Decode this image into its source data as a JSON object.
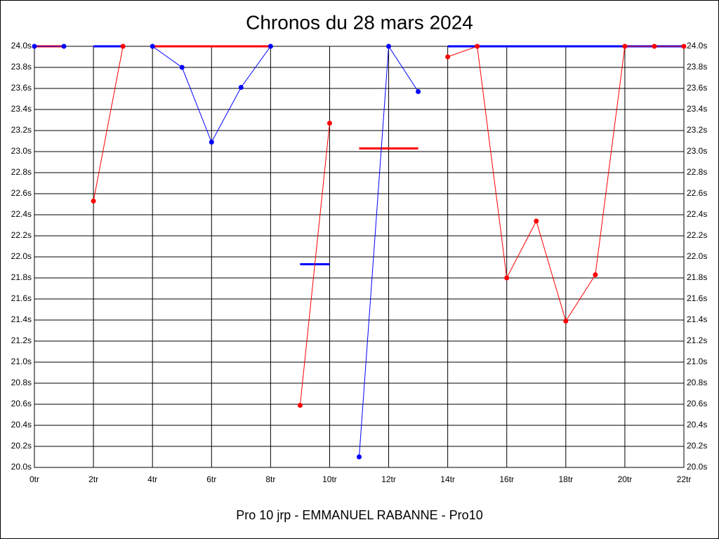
{
  "chart_data": {
    "type": "line",
    "title": "Chronos du 28 mars 2024",
    "xlabel": "Pro 10 jrp - EMMANUEL RABANNE - Pro10",
    "x": [
      0,
      1,
      2,
      3,
      4,
      5,
      6,
      7,
      8,
      9,
      10,
      11,
      12,
      13,
      14,
      15,
      16,
      17,
      18,
      19,
      20,
      21,
      22
    ],
    "series": [
      {
        "color": "#ff0000",
        "markers": false,
        "width": 3,
        "x": [
          0,
          1,
          null,
          4,
          8,
          null,
          11,
          13
        ],
        "values": [
          24.0,
          24.0,
          null,
          24.0,
          24.0,
          null,
          23.03,
          23.03
        ]
      },
      {
        "color": "#0000ff",
        "markers": false,
        "width": 3,
        "x": [
          2,
          3,
          null,
          9,
          10,
          null,
          14,
          22
        ],
        "values": [
          24.0,
          24.0,
          null,
          21.93,
          21.93,
          null,
          24.0,
          24.0
        ]
      },
      {
        "color": "#0000ff",
        "markers": true,
        "width": 1,
        "values": [
          24.0,
          24.0,
          null,
          null,
          24.0,
          23.8,
          23.09,
          23.61,
          24.0,
          null,
          null,
          20.1,
          24.0,
          23.57,
          null,
          null,
          null,
          null,
          null,
          null,
          null,
          null,
          null
        ]
      },
      {
        "color": "#ff0000",
        "markers": true,
        "width": 1,
        "values": [
          null,
          null,
          22.53,
          24.0,
          null,
          null,
          null,
          null,
          null,
          20.59,
          23.27,
          null,
          null,
          null,
          23.9,
          24.0,
          21.8,
          22.34,
          21.39,
          21.83,
          24.0,
          24.0,
          24.0
        ]
      }
    ],
    "xlim": [
      0,
      22
    ],
    "xticks": [
      {
        "value": 0,
        "label": "0tr"
      },
      {
        "value": 2,
        "label": "2tr"
      },
      {
        "value": 4,
        "label": "4tr"
      },
      {
        "value": 6,
        "label": "6tr"
      },
      {
        "value": 8,
        "label": "8tr"
      },
      {
        "value": 10,
        "label": "10tr"
      },
      {
        "value": 12,
        "label": "12tr"
      },
      {
        "value": 14,
        "label": "14tr"
      },
      {
        "value": 16,
        "label": "16tr"
      },
      {
        "value": 18,
        "label": "18tr"
      },
      {
        "value": 20,
        "label": "20tr"
      },
      {
        "value": 22,
        "label": "22tr"
      }
    ],
    "ylim": [
      20.0,
      24.0
    ],
    "yticks": [
      {
        "value": 20.0,
        "label": "20.0s"
      },
      {
        "value": 20.2,
        "label": "20.2s"
      },
      {
        "value": 20.4,
        "label": "20.4s"
      },
      {
        "value": 20.6,
        "label": "20.6s"
      },
      {
        "value": 20.8,
        "label": "20.8s"
      },
      {
        "value": 21.0,
        "label": "21.0s"
      },
      {
        "value": 21.2,
        "label": "21.2s"
      },
      {
        "value": 21.4,
        "label": "21.4s"
      },
      {
        "value": 21.6,
        "label": "21.6s"
      },
      {
        "value": 21.8,
        "label": "21.8s"
      },
      {
        "value": 22.0,
        "label": "22.0s"
      },
      {
        "value": 22.2,
        "label": "22.2s"
      },
      {
        "value": 22.4,
        "label": "22.4s"
      },
      {
        "value": 22.6,
        "label": "22.6s"
      },
      {
        "value": 22.8,
        "label": "22.8s"
      },
      {
        "value": 23.0,
        "label": "23.0s"
      },
      {
        "value": 23.2,
        "label": "23.2s"
      },
      {
        "value": 23.4,
        "label": "23.4s"
      },
      {
        "value": 23.6,
        "label": "23.6s"
      },
      {
        "value": 23.8,
        "label": "23.8s"
      },
      {
        "value": 24.0,
        "label": "24.0s"
      }
    ],
    "grid": true
  }
}
